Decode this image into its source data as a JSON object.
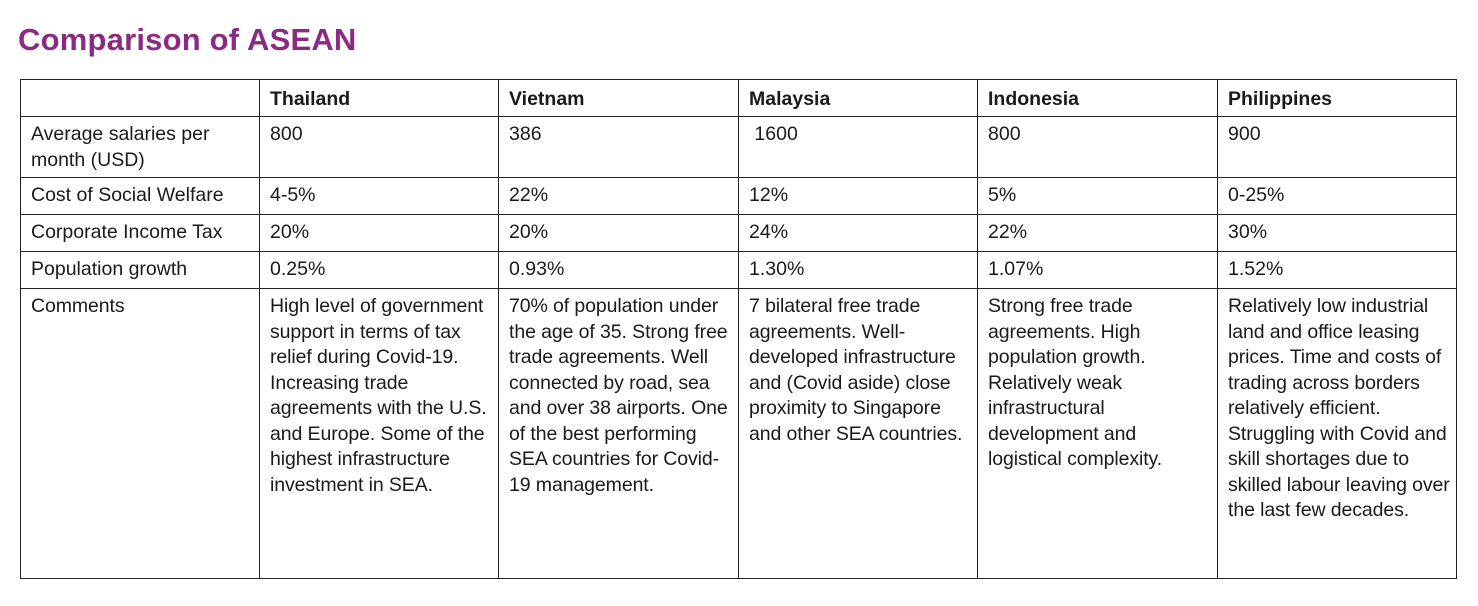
{
  "title": "Comparison of ASEAN",
  "table": {
    "headers": [
      "",
      "Thailand",
      "Vietnam",
      "Malaysia",
      "Indonesia",
      "Philippines"
    ],
    "rows": [
      {
        "label": "Average salaries per month  (USD)",
        "values": [
          "800",
          "386",
          " 1600",
          "800",
          "900"
        ]
      },
      {
        "label": "Cost of Social Welfare",
        "values": [
          "4-5%",
          "22%",
          "12%",
          "5%",
          "0-25%"
        ]
      },
      {
        "label": "Corporate Income Tax",
        "values": [
          "20%",
          "20%",
          "24%",
          "22%",
          "30%"
        ]
      },
      {
        "label": "Population growth",
        "values": [
          "0.25%",
          "0.93%",
          "1.30%",
          "1.07%",
          "1.52%"
        ]
      },
      {
        "label": "Comments",
        "values": [
          "High level of government support in terms of tax relief during Covid-19. Increasing trade agreements with the U.S. and Europe. Some of the highest infrastructure investment in SEA.",
          "70% of population under the age of 35. Strong free trade agreements. Well connected by road, sea and  over 38 airports. One of the best performing SEA countries for Covid-19 management.",
          "7 bilateral free trade agreements. Well-developed infrastructure and (Covid aside) close proximity to Singapore and other SEA countries.",
          "Strong free trade agreements. High population growth. Relatively weak infrastructural development and logistical complexity.",
          "Relatively low industrial land and office leasing prices. Time and costs of trading across borders relatively efficient. Struggling with Covid and skill shortages due to skilled labour leaving over the last few decades."
        ]
      }
    ]
  },
  "colors": {
    "title": "#8a2a82",
    "border": "#222222",
    "text": "#1a1a1a"
  }
}
